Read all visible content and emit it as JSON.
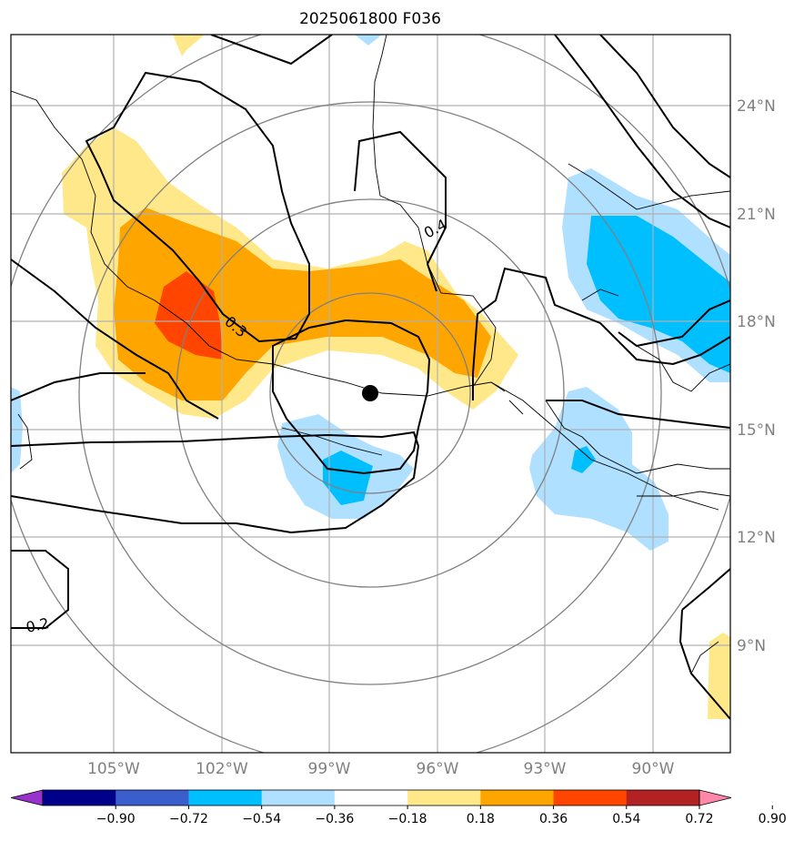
{
  "title": "2025061800 F036",
  "lon_ticks": [
    "105°W",
    "102°W",
    "99°W",
    "96°W",
    "93°W",
    "90°W"
  ],
  "lat_ticks": [
    "24°N",
    "21°N",
    "18°N",
    "15°N",
    "12°N",
    "9°N"
  ],
  "colorbar": {
    "labels": [
      "−0.90",
      "−0.72",
      "−0.54",
      "−0.36",
      "−0.18",
      "0.18",
      "0.36",
      "0.54",
      "0.72",
      "0.90"
    ],
    "colors": [
      "#9932cc",
      "#00008b",
      "#3a5fcd",
      "#00bfff",
      "#b0e0ff",
      "#ffffff",
      "#ffe88a",
      "#ffa500",
      "#ff4500",
      "#b22222",
      "#ff88aa"
    ]
  },
  "contour_labels": [
    "0.4",
    "0.3",
    "0.2"
  ],
  "colors": {
    "pos_low": "#ffe88a",
    "pos_mid": "#ffa500",
    "pos_high": "#ff4500",
    "neg_low": "#b0e0ff",
    "neg_mid": "#00bfff",
    "grid": "#b0b0b0",
    "rings": "#808080"
  },
  "center_marker": "storm-center-dot"
}
